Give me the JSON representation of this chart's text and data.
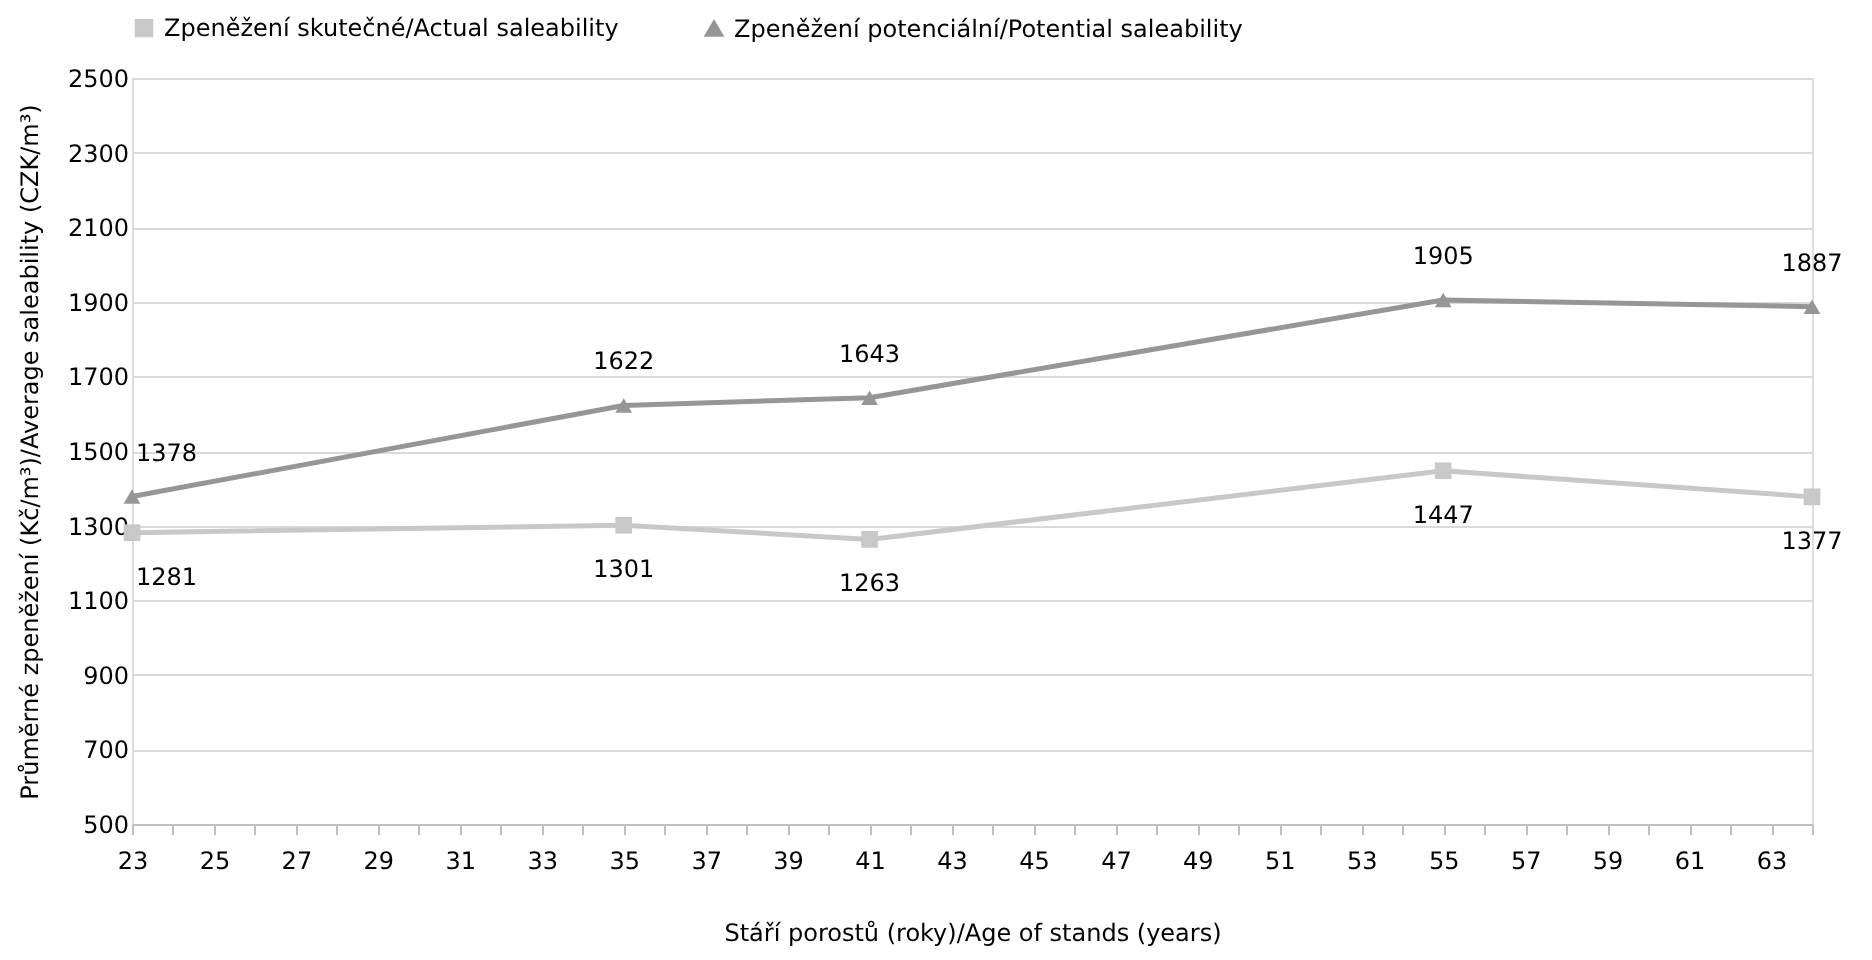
{
  "chart_data": {
    "type": "line",
    "xlabel": "Stáří porostů (roky)/Age of stands (years)",
    "ylabel": "Průměrné zpeněžení (Kč/m³)/Average saleability (CZK/m³)",
    "x": [
      23,
      35,
      41,
      55,
      64
    ],
    "series": [
      {
        "name": "Zpeněžení skutečné/Actual saleability",
        "color": "#c8c8c8",
        "marker": "square",
        "values": [
          1281,
          1301,
          1263,
          1447,
          1377
        ]
      },
      {
        "name": "Zpeněžení potenciální/Potential saleability",
        "color": "#969696",
        "marker": "triangle",
        "values": [
          1378,
          1622,
          1643,
          1905,
          1887
        ]
      }
    ],
    "xlim": [
      23,
      64
    ],
    "xticks": [
      23,
      {
        "value": 24,
        "label": null
      },
      25,
      {
        "value": 26,
        "label": null
      },
      27,
      {
        "value": 28,
        "label": null
      },
      29,
      {
        "value": 30,
        "label": null
      },
      31,
      {
        "value": 32,
        "label": null
      },
      33,
      {
        "value": 34,
        "label": null
      },
      35,
      {
        "value": 36,
        "label": null
      },
      37,
      {
        "value": 38,
        "label": null
      },
      39,
      {
        "value": 40,
        "label": null
      },
      41,
      {
        "value": 42,
        "label": null
      },
      43,
      {
        "value": 44,
        "label": null
      },
      45,
      {
        "value": 46,
        "label": null
      },
      47,
      {
        "value": 48,
        "label": null
      },
      49,
      {
        "value": 50,
        "label": null
      },
      51,
      {
        "value": 52,
        "label": null
      },
      53,
      {
        "value": 54,
        "label": null
      },
      55,
      {
        "value": 56,
        "label": null
      },
      57,
      {
        "value": 58,
        "label": null
      },
      59,
      {
        "value": 60,
        "label": null
      },
      61,
      {
        "value": 62,
        "label": null
      },
      63,
      {
        "value": 64,
        "label": null
      }
    ],
    "ylim": [
      500,
      2500
    ],
    "yticks": [
      500,
      700,
      900,
      1100,
      1300,
      1500,
      1700,
      1900,
      2100,
      2300,
      2500
    ],
    "grid": "y",
    "legend": "top",
    "data_labels": true,
    "line_style": "solid"
  }
}
